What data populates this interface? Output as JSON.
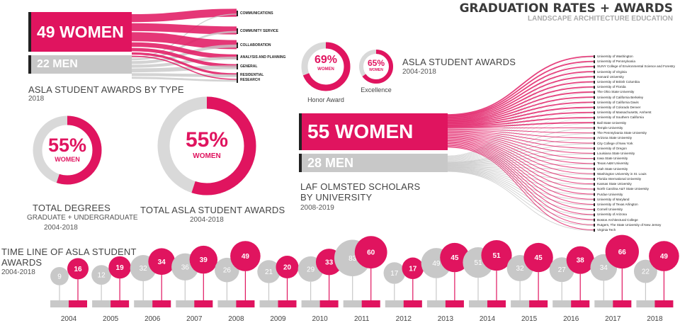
{
  "header": {
    "title": "GRADUATION RATES + AWARDS",
    "subtitle": "LANDSCAPE ARCHITECTURE EDUCATION"
  },
  "colors": {
    "women": "#e0145f",
    "men": "#c8c8c8",
    "dark": "#222222"
  },
  "awards_by_type": {
    "women_label": "49 WOMEN",
    "men_label": "22 MEN",
    "title": "ASLA STUDENT AWARDS BY TYPE",
    "year": "2018",
    "categories": [
      "COMMUNICATIONS",
      "COMMUNITY SERVICE",
      "COLLABORATION",
      "ANALYSIS AND PLANNING",
      "GENERAL",
      "RESIDENTIAL",
      "RESEARCH"
    ]
  },
  "degrees": {
    "pct": "55%",
    "label": "WOMEN",
    "value": 55,
    "title": "TOTAL DEGREES",
    "sub1": "GRADUATE + UNDERGRADUATE",
    "sub2": "2004-2018"
  },
  "total_awards": {
    "pct": "55%",
    "label": "WOMEN",
    "value": 55,
    "title": "TOTAL ASLA STUDENT AWARDS",
    "sub": "2004-2018"
  },
  "honor": {
    "pct": "69%",
    "label": "WOMEN",
    "value": 69,
    "caption": "Honor Award"
  },
  "excellence": {
    "pct": "65%",
    "label": "WOMEN",
    "value": 65,
    "caption": "Excellence"
  },
  "asla_awards": {
    "title": "ASLA STUDENT AWARDS",
    "sub": "2004-2018"
  },
  "scholars": {
    "women_label": "55 WOMEN",
    "men_label": "28 MEN",
    "title1": "LAF OLMSTED SCHOLARS",
    "title2": "BY UNIVERSITY",
    "sub": "2008-2019",
    "universities": [
      "University of Washington",
      "University of Pennsylvania",
      "SUNY College of Environmental Science and Forestry",
      "University of Virginia",
      "Harvard University",
      "University of British Columbia",
      "University of Florida",
      "The Ohio State University",
      "University of California Berkeley",
      "University of California Davis",
      "University of Colorado Denver",
      "University of Massachusetts, Amherst",
      "University of Southern California",
      "Ball State University",
      "Temple University",
      "The Pennsylvania State University",
      "Arizona State University",
      "City College of New York",
      "University of Oregon",
      "Louisiana State University",
      "Iowa State University",
      "Texas A&M University",
      "Utah State University",
      "Washington University in St. Louis",
      "Florida International University",
      "Kansas State University",
      "North Carolina A&T State University",
      "Purdue University",
      "University of Maryland",
      "University of Texas Arlington",
      "Cornell University",
      "University of Arizona",
      "Boston Architectural College",
      "Rutgers, The State University of New Jersey",
      "Virginia Tech"
    ]
  },
  "timeline": {
    "title1": "TIME LINE OF ASLA STUDENT",
    "title2": " AWARDS",
    "sub": "2004-2018"
  },
  "chart_data": [
    {
      "type": "bar",
      "title": "TIME LINE OF ASLA STUDENT AWARDS",
      "categories": [
        "2004",
        "2005",
        "2006",
        "2007",
        "2008",
        "2009",
        "2010",
        "2011",
        "2012",
        "2013",
        "2014",
        "2015",
        "2016",
        "2017",
        "2018"
      ],
      "series": [
        {
          "name": "",
          "values": [
            9,
            12,
            32,
            36,
            26,
            21,
            29,
            83,
            17,
            49,
            51,
            32,
            27,
            34,
            22
          ]
        },
        {
          "name": "",
          "values": [
            16,
            19,
            34,
            39,
            49,
            20,
            33,
            60,
            17,
            45,
            51,
            45,
            38,
            66,
            49
          ]
        }
      ]
    },
    {
      "type": "pie",
      "title": "TOTAL DEGREES",
      "labels": [
        "WOMEN",
        ""
      ],
      "values": [
        55,
        45
      ]
    },
    {
      "type": "pie",
      "title": "TOTAL ASLA STUDENT AWARDS",
      "labels": [
        "WOMEN",
        ""
      ],
      "values": [
        55,
        45
      ]
    },
    {
      "type": "pie",
      "title": "Honor Award",
      "labels": [
        "WOMEN",
        ""
      ],
      "values": [
        69,
        31
      ]
    },
    {
      "type": "pie",
      "title": "Excellence",
      "labels": [
        "WOMEN",
        ""
      ],
      "values": [
        65,
        35
      ]
    }
  ]
}
